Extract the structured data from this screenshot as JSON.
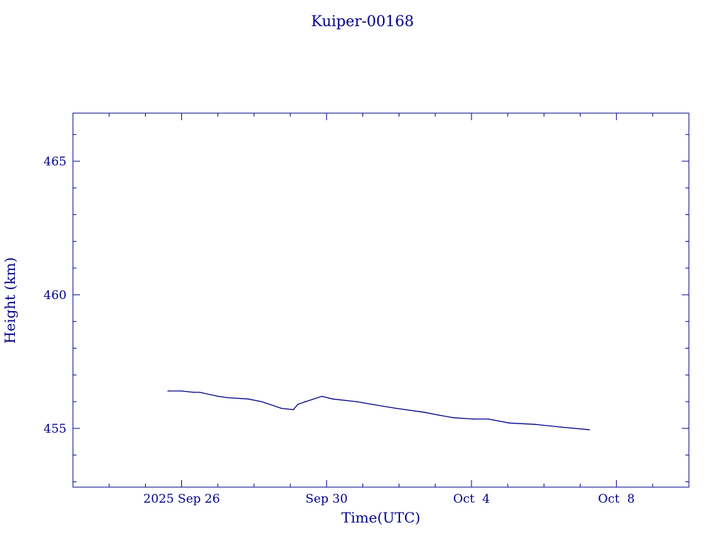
{
  "chart_data": {
    "type": "line",
    "title": "Kuiper-00168",
    "xlabel": "Time(UTC)",
    "ylabel": "Height (km)",
    "color": "#00008b",
    "xlim": [
      "2025-09-23",
      "2025-10-10"
    ],
    "ylim": [
      452.8,
      466.8
    ],
    "x_ticks": [
      {
        "date": "2025-09-26",
        "label": "2025 Sep 26"
      },
      {
        "date": "2025-09-30",
        "label": "Sep 30"
      },
      {
        "date": "2025-10-04",
        "label": "Oct  4"
      },
      {
        "date": "2025-10-08",
        "label": "Oct  8"
      }
    ],
    "y_ticks": [
      455,
      460,
      465
    ],
    "grid": false,
    "series": [
      {
        "x": [
          "2025-09-25 15:00",
          "2025-09-26 00:00",
          "2025-09-26 08:00",
          "2025-09-26 12:00",
          "2025-09-27 00:00",
          "2025-09-27 06:00",
          "2025-09-27 20:00",
          "2025-09-28 05:00",
          "2025-09-28 18:00",
          "2025-09-29 02:00",
          "2025-09-29 05:00",
          "2025-09-29 10:00",
          "2025-09-29 21:00",
          "2025-09-30 04:00",
          "2025-09-30 20:00",
          "2025-10-01 06:00",
          "2025-10-01 22:00",
          "2025-10-02 17:00",
          "2025-10-03 02:00",
          "2025-10-03 12:00",
          "2025-10-04 01:00",
          "2025-10-04 11:00",
          "2025-10-05 01:00",
          "2025-10-05 18:00",
          "2025-10-06 11:00",
          "2025-10-07 06:00"
        ],
        "y": [
          456.4,
          456.4,
          456.35,
          456.35,
          456.2,
          456.15,
          456.1,
          456.0,
          455.75,
          455.7,
          455.9,
          456.0,
          456.2,
          456.1,
          456.0,
          455.9,
          455.75,
          455.6,
          455.5,
          455.4,
          455.35,
          455.35,
          455.2,
          455.15,
          455.05,
          454.95
        ]
      }
    ]
  }
}
